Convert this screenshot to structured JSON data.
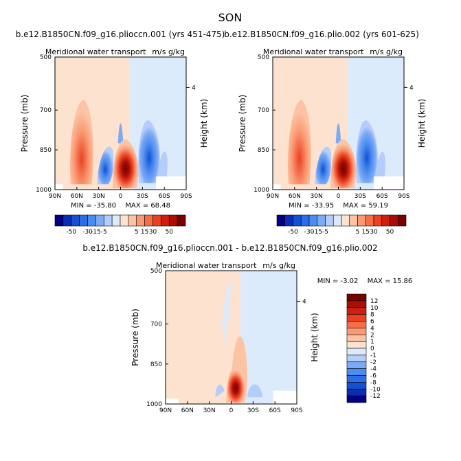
{
  "figure_title": "SON",
  "chart_data": [
    {
      "type": "heatmap",
      "title": "b.e12.B1850CN.f09_g16.plioccn.001 (yrs 451-475)",
      "subtitle": "Meridional water transport",
      "units": "m/s g/kg",
      "xlabel": "",
      "ylabel": "Pressure (mb)",
      "ylabel_right": "Height (km)",
      "x_ticks": [
        "90N",
        "60N",
        "30N",
        "0",
        "30S",
        "60S",
        "90S"
      ],
      "y_ticks": [
        "500",
        "700",
        "850",
        "1000"
      ],
      "y_right_ticks": [
        "4"
      ],
      "ylim": [
        500,
        1000
      ],
      "stats": {
        "min_label": "MIN =",
        "min": "-35.80",
        "max_label": "MAX =",
        "max": "68.48"
      },
      "colorbar": {
        "orientation": "horizontal",
        "labels": [
          "-50",
          "-30",
          "-15",
          "-5",
          "5",
          "15",
          "30",
          "50"
        ],
        "colors": [
          "#000087",
          "#0a2db4",
          "#1450d2",
          "#2d6ee6",
          "#4b8cf0",
          "#7daaf5",
          "#b4cdfa",
          "#dcebfc",
          "#fde2cf",
          "#fcc3a5",
          "#fa9a73",
          "#f56e46",
          "#eb4123",
          "#d21e0f",
          "#aa0f05",
          "#780000"
        ]
      }
    },
    {
      "type": "heatmap",
      "title": "b.e12.B1850CN.f09_g16.plio.002 (yrs 601-625)",
      "subtitle": "Meridional water transport",
      "units": "m/s g/kg",
      "xlabel": "",
      "ylabel": "Pressure (mb)",
      "ylabel_right": "Height (km)",
      "x_ticks": [
        "90N",
        "60N",
        "30N",
        "0",
        "30S",
        "60S",
        "90S"
      ],
      "y_ticks": [
        "500",
        "700",
        "850",
        "1000"
      ],
      "y_right_ticks": [
        "4"
      ],
      "ylim": [
        500,
        1000
      ],
      "stats": {
        "min_label": "MIN =",
        "min": "-33.95",
        "max_label": "MAX =",
        "max": "59.19"
      },
      "colorbar": {
        "orientation": "horizontal",
        "labels": [
          "-50",
          "-30",
          "-15",
          "-5",
          "5",
          "15",
          "30",
          "50"
        ],
        "colors": [
          "#000087",
          "#0a2db4",
          "#1450d2",
          "#2d6ee6",
          "#4b8cf0",
          "#7daaf5",
          "#b4cdfa",
          "#dcebfc",
          "#fde2cf",
          "#fcc3a5",
          "#fa9a73",
          "#f56e46",
          "#eb4123",
          "#d21e0f",
          "#aa0f05",
          "#780000"
        ]
      }
    },
    {
      "type": "heatmap",
      "title": "b.e12.B1850CN.f09_g16.plioccn.001 - b.e12.B1850CN.f09_g16.plio.002",
      "subtitle": "Meridional water transport",
      "units": "m/s g/kg",
      "xlabel": "",
      "ylabel": "Pressure (mb)",
      "ylabel_right": "Height (km)",
      "x_ticks": [
        "90N",
        "60N",
        "30N",
        "0",
        "30S",
        "60S",
        "90S"
      ],
      "y_ticks": [
        "500",
        "700",
        "850",
        "1000"
      ],
      "y_right_ticks": [
        "4"
      ],
      "ylim": [
        500,
        1000
      ],
      "stats": {
        "min_label": "MIN =",
        "min": "-3.02",
        "max_label": "MAX =",
        "max": "15.86"
      },
      "colorbar": {
        "orientation": "vertical",
        "labels": [
          "12",
          "10",
          "8",
          "6",
          "4",
          "2",
          "1",
          "0",
          "-1",
          "-2",
          "-4",
          "-6",
          "-8",
          "-10",
          "-12"
        ],
        "colors": [
          "#780000",
          "#aa0f05",
          "#d21e0f",
          "#eb4123",
          "#f56e46",
          "#fa9a73",
          "#fcc3a5",
          "#fde2cf",
          "#dcebfc",
          "#b4cdfa",
          "#7daaf5",
          "#4b8cf0",
          "#2d6ee6",
          "#1450d2",
          "#0a2db4",
          "#000087"
        ]
      }
    }
  ]
}
